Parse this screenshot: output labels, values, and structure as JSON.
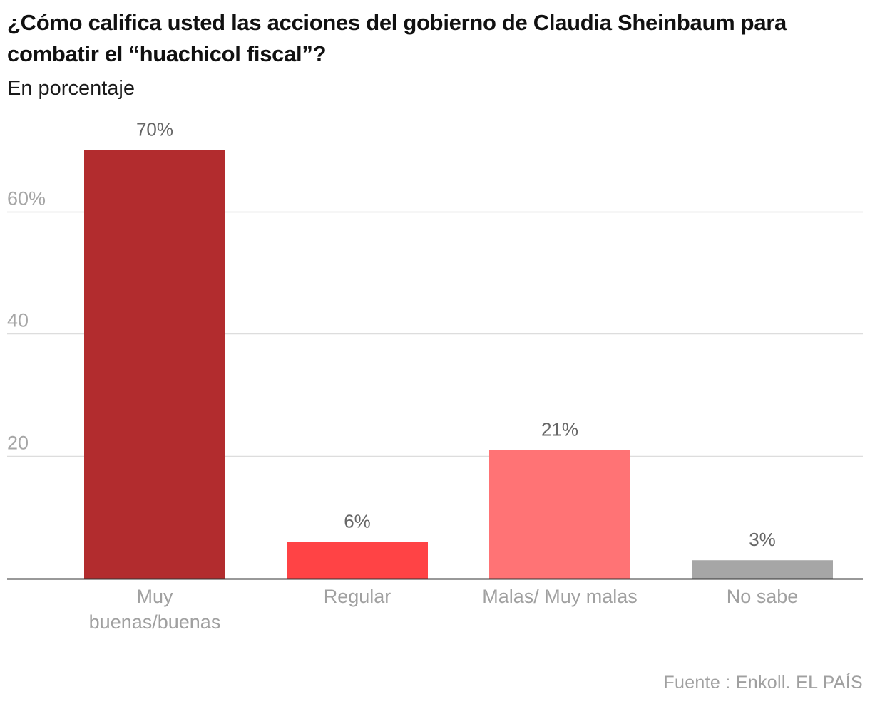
{
  "chart_data": {
    "type": "bar",
    "title": "¿Cómo califica usted las acciones del gobierno de Claudia Sheinbaum para combatir el “huachicol fiscal”?",
    "subtitle": "En porcentaje",
    "categories": [
      [
        "Muy",
        "buenas/buenas"
      ],
      [
        "Regular"
      ],
      [
        "Malas/ Muy malas"
      ],
      [
        "No sabe"
      ]
    ],
    "values": [
      70,
      6,
      21,
      3
    ],
    "value_labels": [
      "70%",
      "6%",
      "21%",
      "3%"
    ],
    "colors": [
      "#b22c2e",
      "#ff4345",
      "#ff7375",
      "#a6a6a6"
    ],
    "y_ticks": [
      20,
      40,
      60
    ],
    "y_tick_labels": [
      "20",
      "40",
      "60%"
    ],
    "ylim": [
      0,
      80
    ],
    "grid": true,
    "xlabel": "",
    "ylabel": "",
    "legend": false
  },
  "source": "Fuente : Enkoll. EL PAÍS"
}
